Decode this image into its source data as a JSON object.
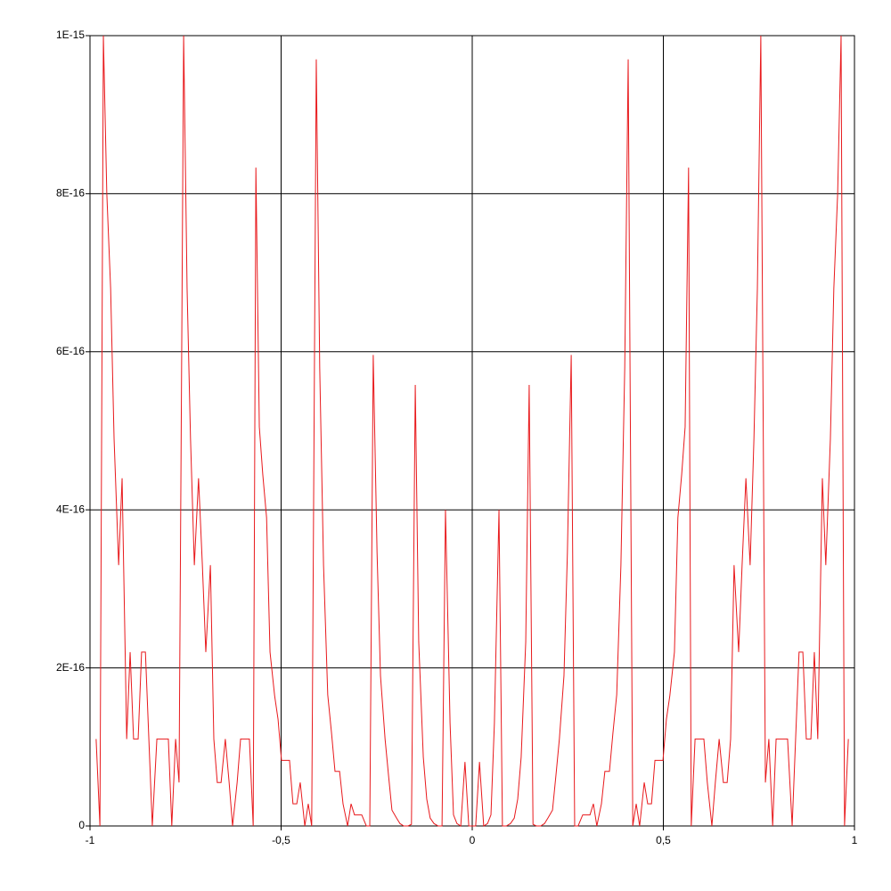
{
  "chart_data": {
    "type": "line",
    "x": [
      -0.984,
      -0.974,
      -0.965,
      -0.956,
      -0.946,
      -0.937,
      -0.925,
      -0.916,
      -0.904,
      -0.895,
      -0.886,
      -0.874,
      -0.865,
      -0.855,
      -0.846,
      -0.837,
      -0.825,
      -0.816,
      -0.807,
      -0.795,
      -0.786,
      -0.776,
      -0.767,
      -0.755,
      -0.746,
      -0.737,
      -0.727,
      -0.716,
      -0.706,
      -0.697,
      -0.685,
      -0.676,
      -0.667,
      -0.657,
      -0.646,
      -0.636,
      -0.627,
      -0.615,
      -0.606,
      -0.594,
      -0.583,
      -0.573,
      -0.566,
      -0.557,
      -0.548,
      -0.538,
      -0.529,
      -0.517,
      -0.508,
      -0.499,
      -0.487,
      -0.478,
      -0.469,
      -0.459,
      -0.45,
      -0.438,
      -0.429,
      -0.42,
      -0.408,
      -0.399,
      -0.389,
      -0.378,
      -0.368,
      -0.359,
      -0.347,
      -0.338,
      -0.326,
      -0.317,
      -0.308,
      -0.298,
      -0.289,
      -0.277,
      -0.268,
      -0.259,
      -0.249,
      -0.24,
      -0.228,
      -0.219,
      -0.21,
      -0.198,
      -0.189,
      -0.179,
      -0.168,
      -0.159,
      -0.149,
      -0.14,
      -0.128,
      -0.119,
      -0.11,
      -0.1,
      -0.089,
      -0.079,
      -0.07,
      -0.058,
      -0.049,
      -0.04,
      -0.03,
      -0.019,
      -0.009,
      0.009,
      0.019,
      0.03,
      0.04,
      0.049,
      0.058,
      0.07,
      0.079,
      0.089,
      0.1,
      0.11,
      0.119,
      0.128,
      0.14,
      0.149,
      0.159,
      0.168,
      0.179,
      0.189,
      0.198,
      0.21,
      0.219,
      0.228,
      0.24,
      0.249,
      0.259,
      0.268,
      0.277,
      0.289,
      0.298,
      0.308,
      0.317,
      0.326,
      0.338,
      0.347,
      0.359,
      0.368,
      0.378,
      0.389,
      0.399,
      0.408,
      0.42,
      0.429,
      0.438,
      0.45,
      0.459,
      0.469,
      0.478,
      0.487,
      0.499,
      0.508,
      0.517,
      0.529,
      0.538,
      0.548,
      0.557,
      0.566,
      0.573,
      0.583,
      0.594,
      0.606,
      0.615,
      0.627,
      0.636,
      0.646,
      0.657,
      0.667,
      0.676,
      0.685,
      0.697,
      0.706,
      0.716,
      0.727,
      0.737,
      0.746,
      0.755,
      0.767,
      0.776,
      0.786,
      0.795,
      0.807,
      0.816,
      0.825,
      0.837,
      0.846,
      0.855,
      0.865,
      0.874,
      0.886,
      0.895,
      0.904,
      0.916,
      0.925,
      0.937,
      0.946,
      0.956,
      0.965,
      0.974,
      0.984
    ],
    "series": [
      {
        "color": "#e8191c",
        "values": [
          1.1e-16,
          0,
          1e-15,
          8e-16,
          6.8e-16,
          4.9e-16,
          3.3e-16,
          4.4e-16,
          1.1e-16,
          2.2e-16,
          1.1e-16,
          1.1e-16,
          2.2e-16,
          2.2e-16,
          1.1e-16,
          0,
          1.1e-16,
          1.1e-16,
          1.1e-16,
          1.1e-16,
          0,
          1.1e-16,
          5.5e-17,
          1e-15,
          6.8e-16,
          4.9e-16,
          3.3e-16,
          4.4e-16,
          3.3e-16,
          2.2e-16,
          3.3e-16,
          1.1e-16,
          5.5e-17,
          5.5e-17,
          1.1e-16,
          5.5e-17,
          0,
          5.5e-17,
          1.1e-16,
          1.1e-16,
          1.1e-16,
          0,
          8.33e-16,
          5.05e-16,
          4.45e-16,
          3.9e-16,
          2.2e-16,
          1.65e-16,
          1.35e-16,
          8.3e-17,
          8.3e-17,
          8.3e-17,
          2.8e-17,
          2.8e-17,
          5.5e-17,
          0,
          2.8e-17,
          0,
          9.7e-16,
          5.8e-16,
          3.3e-16,
          1.66e-16,
          1.17e-16,
          6.9e-17,
          6.9e-17,
          2.8e-17,
          0,
          2.8e-17,
          1.4e-17,
          1.4e-17,
          1.4e-17,
          0,
          0,
          5.96e-16,
          3.46e-16,
          1.9e-16,
          1.1e-16,
          6.4e-17,
          2e-17,
          1e-17,
          3e-18,
          0,
          0,
          2e-18,
          5.58e-16,
          2.33e-16,
          8.7e-17,
          3.4e-17,
          1e-17,
          3e-18,
          0,
          0,
          4e-16,
          1.3e-16,
          1.4e-17,
          3e-18,
          0,
          8.1e-17,
          0,
          0,
          8.1e-17,
          0,
          3e-18,
          1.4e-17,
          1.3e-16,
          4e-16,
          0,
          0,
          3e-18,
          1e-17,
          3.4e-17,
          8.7e-17,
          2.33e-16,
          5.58e-16,
          2e-18,
          0,
          0,
          3e-18,
          1e-17,
          2e-17,
          6.4e-17,
          1.1e-16,
          1.9e-16,
          3.46e-16,
          5.96e-16,
          0,
          0,
          1.4e-17,
          1.4e-17,
          1.4e-17,
          2.8e-17,
          0,
          2.8e-17,
          6.9e-17,
          6.9e-17,
          1.17e-16,
          1.66e-16,
          3.3e-16,
          5.8e-16,
          9.7e-16,
          0,
          2.8e-17,
          0,
          5.5e-17,
          2.8e-17,
          2.8e-17,
          8.3e-17,
          8.3e-17,
          8.3e-17,
          1.35e-16,
          1.65e-16,
          2.2e-16,
          3.9e-16,
          4.45e-16,
          5.05e-16,
          8.33e-16,
          0,
          1.1e-16,
          1.1e-16,
          1.1e-16,
          5.5e-17,
          0,
          5.5e-17,
          1.1e-16,
          5.5e-17,
          5.5e-17,
          1.1e-16,
          3.3e-16,
          2.2e-16,
          3.3e-16,
          4.4e-16,
          3.3e-16,
          4.9e-16,
          6.8e-16,
          1e-15,
          5.5e-17,
          1.1e-16,
          0,
          1.1e-16,
          1.1e-16,
          1.1e-16,
          1.1e-16,
          0,
          1.1e-16,
          2.2e-16,
          2.2e-16,
          1.1e-16,
          1.1e-16,
          2.2e-16,
          1.1e-16,
          4.4e-16,
          3.3e-16,
          4.9e-16,
          6.8e-16,
          8e-16,
          1e-15,
          0,
          1.1e-16
        ]
      }
    ],
    "xlim": [
      -1,
      1
    ],
    "xticks": [
      -1,
      {
        "value": -0.5,
        "label": "-0,5"
      },
      0,
      {
        "value": 0.5,
        "label": "0,5"
      },
      1
    ],
    "ylim": [
      0,
      1e-15
    ],
    "yticks": [
      0,
      {
        "value": 2e-16,
        "label": "2E-16"
      },
      {
        "value": 4e-16,
        "label": "4E-16"
      },
      {
        "value": 6e-16,
        "label": "6E-16"
      },
      {
        "value": 8e-16,
        "label": "8E-16"
      },
      {
        "value": 1e-15,
        "label": "1E-15"
      }
    ],
    "grid": true
  }
}
